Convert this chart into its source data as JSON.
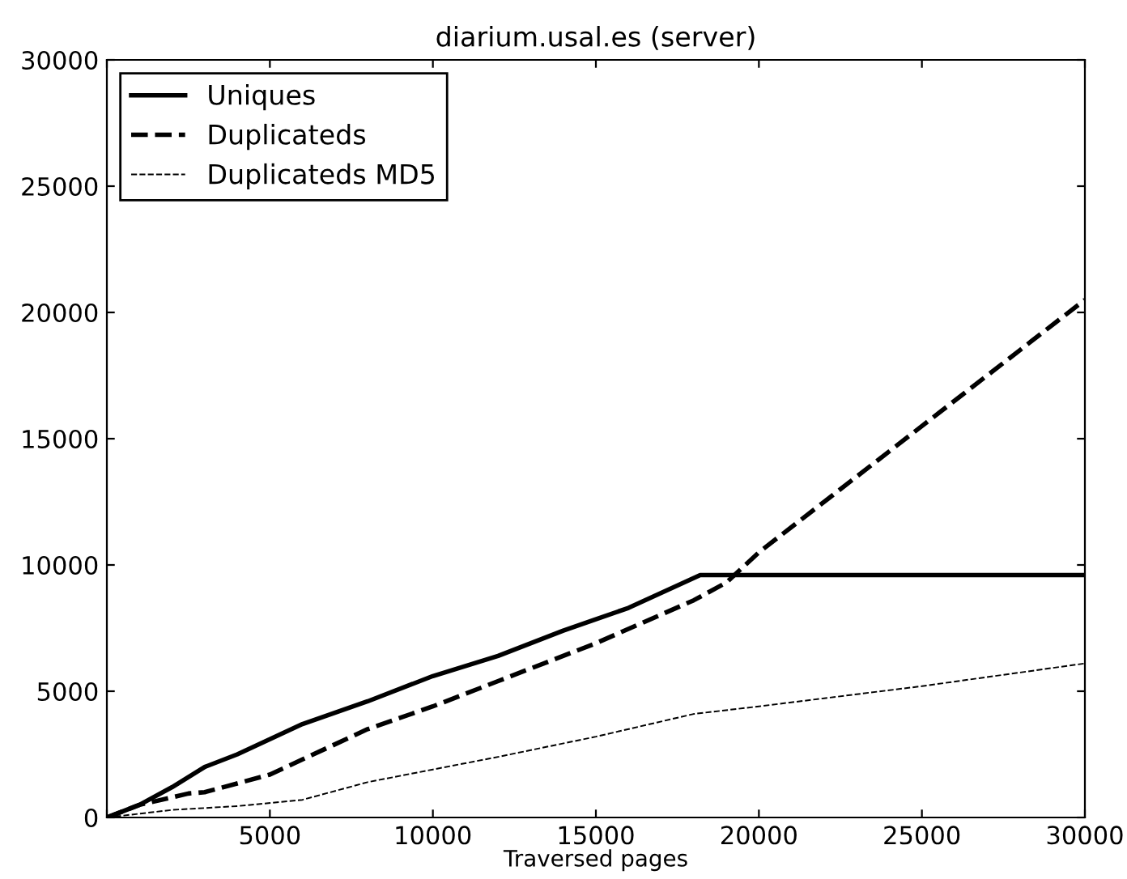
{
  "chart_data": {
    "type": "line",
    "title": "diarium.usal.es (server)",
    "xlabel": "Traversed pages",
    "xlim": [
      0,
      30000
    ],
    "xticks": [
      {
        "value": 0,
        "label": null
      },
      5000,
      10000,
      15000,
      20000,
      25000,
      30000
    ],
    "ylim": [
      0,
      30000
    ],
    "yticks": [
      0,
      5000,
      10000,
      15000,
      20000,
      25000,
      30000
    ],
    "grid": false,
    "legend": "top left",
    "series": [
      {
        "name": "Uniques",
        "color": "#000000",
        "line_style": "solid",
        "x": [
          0,
          1000,
          2000,
          3000,
          4000,
          5000,
          6000,
          8000,
          10000,
          12000,
          14000,
          16000,
          18200,
          30000
        ],
        "values": [
          0,
          500,
          1200,
          2000,
          2500,
          3100,
          3700,
          4600,
          5600,
          6400,
          7400,
          8300,
          9600,
          9600
        ]
      },
      {
        "name": "Duplicateds",
        "color": "#000000",
        "line_style": "dashed",
        "x": [
          0,
          1000,
          2500,
          3000,
          5000,
          8000,
          10000,
          12000,
          15000,
          18000,
          19000,
          20000,
          25000,
          30000
        ],
        "values": [
          0,
          500,
          950,
          1000,
          1700,
          3500,
          4400,
          5400,
          6900,
          8600,
          9300,
          10500,
          15500,
          20500
        ]
      },
      {
        "name": "Duplicateds MD5",
        "color": "#000000",
        "line_style": "dashed",
        "x": [
          0,
          2000,
          4000,
          6000,
          8000,
          10000,
          12000,
          15000,
          18000,
          20000,
          25000,
          30000
        ],
        "values": [
          0,
          300,
          450,
          700,
          1400,
          1900,
          2400,
          3200,
          4100,
          4400,
          5200,
          6100
        ]
      }
    ]
  }
}
